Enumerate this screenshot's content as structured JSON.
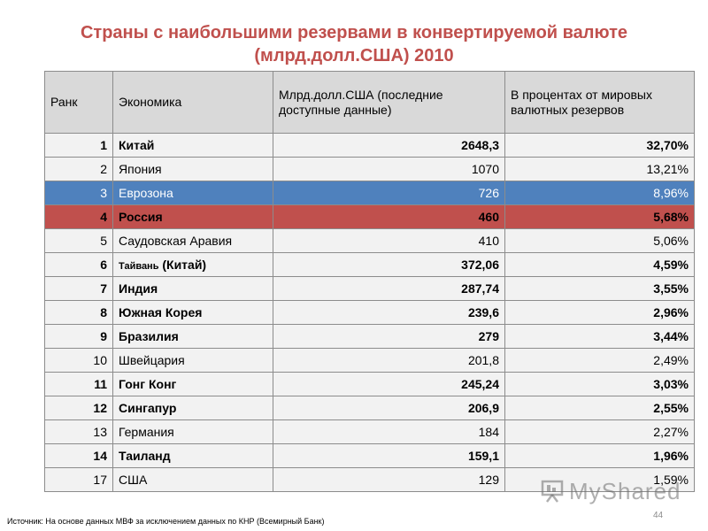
{
  "title": {
    "line1": "Страны с наибольшими резервами в конвертируемой валюте",
    "line2": "(млрд.долл.США) 2010"
  },
  "columns": {
    "rank": "Ранк",
    "economy": "Экономика",
    "value": "Млрд.долл.США (последние доступные данные)",
    "percent": "В процентах от мировых валютных резервов"
  },
  "rows": [
    {
      "rank": "1",
      "economy": "Китай",
      "value": "2648,3",
      "percent": "32,70%"
    },
    {
      "rank": "2",
      "economy": "Япония",
      "value": "1070",
      "percent": "13,21%"
    },
    {
      "rank": "3",
      "economy": "Еврозона",
      "value": "726",
      "percent": "8,96%"
    },
    {
      "rank": "4",
      "economy": "Россия",
      "value": "460",
      "percent": "5,68%"
    },
    {
      "rank": "5",
      "economy": "Саудовская Аравия",
      "value": "410",
      "percent": "5,06%"
    },
    {
      "rank": "6",
      "economy": "Тайвань",
      "economy_suffix": " (Китай)",
      "value": "372,06",
      "percent": "4,59%"
    },
    {
      "rank": "7",
      "economy": "Индия",
      "value": "287,74",
      "percent": "3,55%"
    },
    {
      "rank": "8",
      "economy": "Южная Корея",
      "value": "239,6",
      "percent": "2,96%"
    },
    {
      "rank": "9",
      "economy": "Бразилия",
      "value": "279",
      "percent": "3,44%"
    },
    {
      "rank": "10",
      "economy": "Швейцария",
      "value": "201,8",
      "percent": "2,49%"
    },
    {
      "rank": "11",
      "economy": "Гонг Конг",
      "value": "245,24",
      "percent": "3,03%"
    },
    {
      "rank": "12",
      "economy": "Сингапур",
      "value": "206,9",
      "percent": "2,55%"
    },
    {
      "rank": "13",
      "economy": "Германия",
      "value": "184",
      "percent": "2,27%"
    },
    {
      "rank": "14",
      "economy": "Таиланд",
      "value": "159,1",
      "percent": "1,96%"
    },
    {
      "rank": "17",
      "economy": "США",
      "value": "129",
      "percent": "1,59%"
    }
  ],
  "footer": {
    "source": "Источник: На основе данных МВФ за исключением данных по КНР (Всемирный Банк)",
    "page": "44"
  },
  "watermark": "MyShared",
  "colors": {
    "title": "#c0504d",
    "highlight_blue": "#4f81bd",
    "highlight_red": "#c0504d",
    "row_bg": "#f2f2f2",
    "header_bg": "#d9d9d9"
  }
}
